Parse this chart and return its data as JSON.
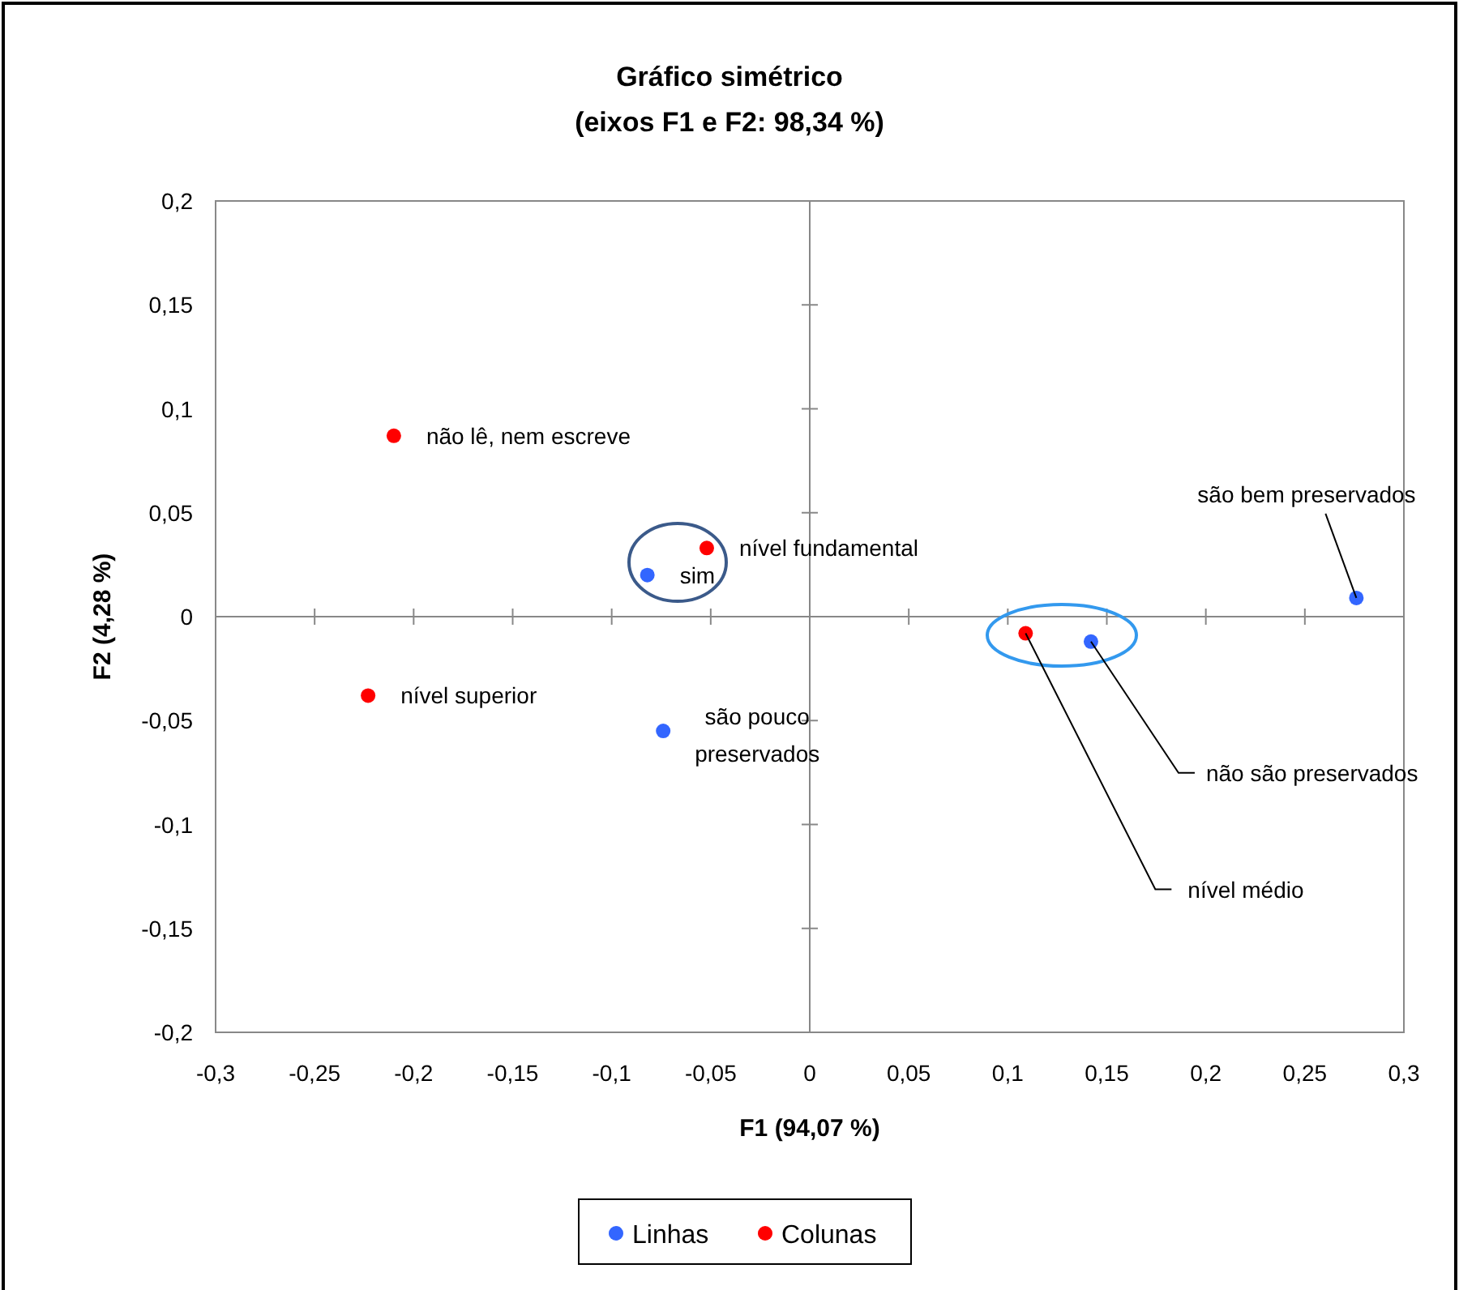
{
  "chart_data": {
    "type": "scatter",
    "title": "Gráfico simétrico",
    "subtitle": "(eixos F1 e F2: 98,34 %)",
    "xlabel": "F1 (94,07 %)",
    "ylabel": "F2 (4,28 %)",
    "xlim": [
      -0.3,
      0.3
    ],
    "ylim": [
      -0.2,
      0.2
    ],
    "xticks": [
      {
        "value": -0.3,
        "label": "-0,3"
      },
      {
        "value": -0.25,
        "label": "-0,25"
      },
      {
        "value": -0.2,
        "label": "-0,2"
      },
      {
        "value": -0.15,
        "label": "-0,15"
      },
      {
        "value": -0.1,
        "label": "-0,1"
      },
      {
        "value": -0.05,
        "label": "-0,05"
      },
      0,
      {
        "value": 0.05,
        "label": "0,05"
      },
      {
        "value": 0.1,
        "label": "0,1"
      },
      {
        "value": 0.15,
        "label": "0,15"
      },
      {
        "value": 0.2,
        "label": "0,2"
      },
      {
        "value": 0.25,
        "label": "0,25"
      },
      {
        "value": 0.3,
        "label": "0,3"
      }
    ],
    "yticks": [
      {
        "value": -0.2,
        "label": "-0,2"
      },
      {
        "value": -0.15,
        "label": "-0,15"
      },
      {
        "value": -0.1,
        "label": "-0,1"
      },
      {
        "value": -0.05,
        "label": "-0,05"
      },
      0,
      {
        "value": 0.05,
        "label": "0,05"
      },
      {
        "value": 0.1,
        "label": "0,1"
      },
      {
        "value": 0.15,
        "label": "0,15"
      },
      {
        "value": 0.2,
        "label": "0,2"
      }
    ],
    "legend": "bottom",
    "marker": "circle",
    "series": [
      {
        "name": "Linhas",
        "color": "#3366ff",
        "x": [
          -0.082,
          -0.074,
          0.142,
          0.276
        ],
        "values": [
          0.02,
          -0.055,
          -0.012,
          0.009
        ]
      },
      {
        "name": "Colunas",
        "color": "#ff0000",
        "x": [
          -0.21,
          -0.052,
          -0.223,
          0.109
        ],
        "values": [
          0.087,
          0.033,
          -0.038,
          -0.008
        ]
      }
    ],
    "annotations": [
      {
        "text": "não lê, nem escreve",
        "x": -0.21,
        "y": 0.087
      },
      {
        "text": "nível fundamental",
        "x": -0.052,
        "y": 0.033
      },
      {
        "text": "sim",
        "x": -0.082,
        "y": 0.02
      },
      {
        "text": "nível superior",
        "x": -0.223,
        "y": -0.038
      },
      {
        "text": "são pouco preservados",
        "x": -0.074,
        "y": -0.055
      },
      {
        "text": "nível médio",
        "x": 0.109,
        "y": -0.008
      },
      {
        "text": "não são preservados",
        "x": 0.142,
        "y": -0.012
      },
      {
        "text": "são bem preservados",
        "x": 0.276,
        "y": 0.009
      }
    ]
  }
}
